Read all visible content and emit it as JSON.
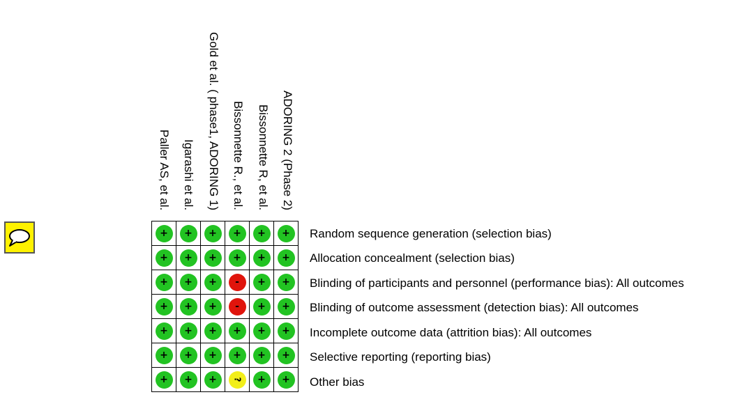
{
  "chart_data": {
    "type": "table",
    "studies": [
      "Paller AS, et al.",
      "Igarashi et al.",
      "Gold et al. ( phase1, ADORING 1)",
      "Bissonnette R., et al.",
      "Bissonnette R, et al.",
      "ADORING 2 (Phase 2)"
    ],
    "domains": [
      "Random sequence generation (selection bias)",
      "Allocation concealment (selection bias)",
      "Blinding of participants and personnel (performance bias): All outcomes",
      "Blinding of outcome assessment (detection bias): All outcomes",
      "Incomplete outcome data (attrition bias): All outcomes",
      "Selective reporting (reporting bias)",
      "Other bias"
    ],
    "judgements": [
      [
        "low",
        "low",
        "low",
        "low",
        "low",
        "low"
      ],
      [
        "low",
        "low",
        "low",
        "low",
        "low",
        "low"
      ],
      [
        "low",
        "low",
        "low",
        "high",
        "low",
        "low"
      ],
      [
        "low",
        "low",
        "low",
        "high",
        "low",
        "low"
      ],
      [
        "low",
        "low",
        "low",
        "low",
        "low",
        "low"
      ],
      [
        "low",
        "low",
        "low",
        "low",
        "low",
        "low"
      ],
      [
        "low",
        "low",
        "low",
        "unclear",
        "low",
        "low"
      ]
    ],
    "symbols": {
      "low": "+",
      "high": "-",
      "unclear": "?"
    },
    "colors": {
      "low": "#22c322",
      "high": "#e0140c",
      "unclear": "#f2ee1a"
    }
  },
  "icons": {
    "comment": "speech-bubble-icon"
  }
}
